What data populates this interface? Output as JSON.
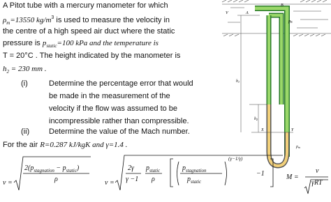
{
  "intro": [
    [
      "A Pitot tube with a mercury manometer for which"
    ],
    [
      "ρ",
      "m",
      "=13550 kg/m",
      "3",
      " is used to measure the velocity in"
    ],
    [
      "the centre of a high speed air duct where the static"
    ],
    [
      "pressure is ",
      "p",
      "static",
      "=100 kPa and the temperature is"
    ],
    [
      "T = 20°C . The height indicated by the manometer is"
    ],
    [
      "h",
      "2",
      " = 230 mm ."
    ]
  ],
  "questions": [
    {
      "number": "(i)",
      "lines": [
        "Determine the percentage error that would",
        "be made in the measurement of the",
        "velocity if the flow was assumed to be",
        "incompressible rather than compressible."
      ]
    },
    {
      "number": "(ii)",
      "lines": [
        "Determine the value of the Mach number."
      ]
    }
  ],
  "air": [
    "For the air ",
    "R",
    "=0.287 kJ/kgK and ",
    "γ",
    "=1.4 ."
  ],
  "formulas": [
    {
      "lhs": "v =",
      "num": [
        "2(p",
        "stagnation",
        " − p",
        "static",
        ")"
      ],
      "den": "ρ"
    },
    {
      "lhs": "v =",
      "a_num": "2γ",
      "a_den": "γ −1",
      "b_num": [
        "p",
        "static"
      ],
      "b_den": "ρ",
      "c_num": [
        "p",
        "stagnation"
      ],
      "c_den": [
        "p",
        "static"
      ],
      "exp": "(γ−1/γ)",
      "tail": "−1"
    },
    {
      "lhs": "M =",
      "num": "v",
      "den": "γRT"
    }
  ],
  "diagram": {
    "v": "V",
    "a": "A",
    "b": "B",
    "pb": [
      "p",
      "B"
    ],
    "h1": [
      "h",
      "1"
    ],
    "h2": [
      "h",
      "2"
    ],
    "x": "X",
    "y": "Y",
    "rho": [
      "ρ",
      "m"
    ]
  }
}
